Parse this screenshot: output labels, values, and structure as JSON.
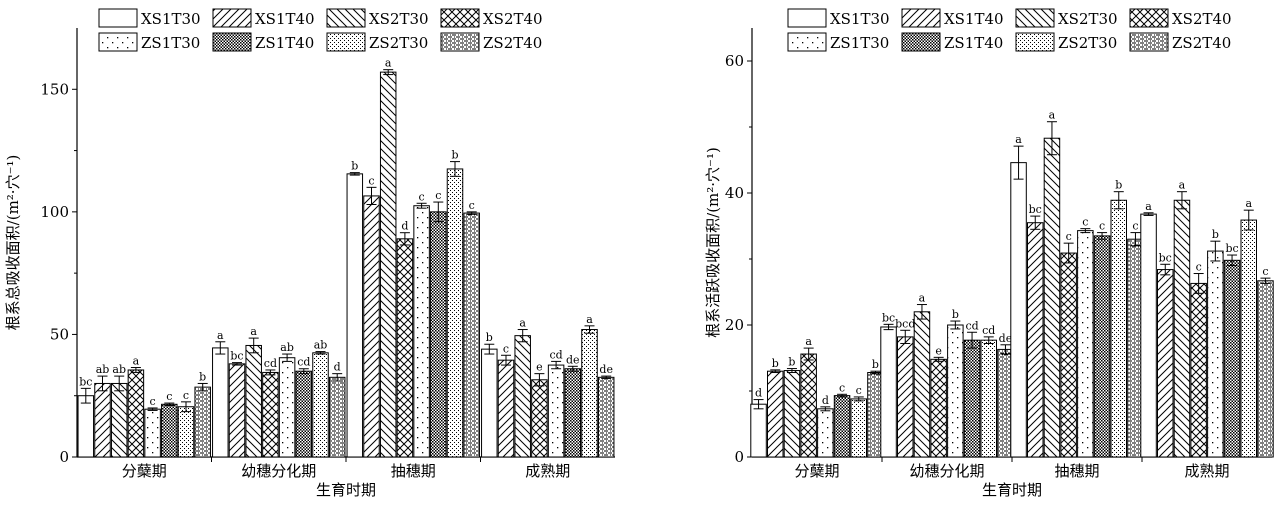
{
  "series_names": [
    "XS1T30",
    "XS1T40",
    "XS2T30",
    "XS2T40",
    "ZS1T30",
    "ZS1T40",
    "ZS2T30",
    "ZS2T40"
  ],
  "patterns": [
    "blank",
    "fwd-diag",
    "back-diag",
    "crosshatch",
    "sparse-dots",
    "dense-check",
    "fine-dots",
    "wave-dash"
  ],
  "chart_data": [
    {
      "type": "bar",
      "title": "",
      "xlabel": "生育时期",
      "ylabel": "根系总吸收面积/(m²·穴⁻¹)",
      "categories": [
        "分蘖期",
        "幼穗分化期",
        "抽穗期",
        "成熟期"
      ],
      "ylim": [
        0,
        175
      ],
      "yticks": [
        0,
        50,
        100,
        150
      ],
      "legend": "top",
      "series": [
        {
          "name": "XS1T30",
          "values": [
            25,
            44.5,
            115.5,
            44
          ],
          "errors": [
            3,
            2.5,
            0.5,
            2
          ],
          "labels": [
            "bc",
            "a",
            "b",
            "b"
          ]
        },
        {
          "name": "XS1T40",
          "values": [
            30,
            38,
            106.5,
            39.5
          ],
          "errors": [
            3,
            0.5,
            3.5,
            2
          ],
          "labels": [
            "ab",
            "bc",
            "c",
            "c"
          ]
        },
        {
          "name": "XS2T30",
          "values": [
            30,
            45.5,
            157,
            49.5
          ],
          "errors": [
            3,
            3,
            1,
            2.5
          ],
          "labels": [
            "ab",
            "a",
            "a",
            "a"
          ]
        },
        {
          "name": "XS2T40",
          "values": [
            35.5,
            34.5,
            89,
            31.5
          ],
          "errors": [
            1,
            1,
            2.5,
            2.5
          ],
          "labels": [
            "a",
            "cd",
            "d",
            "e"
          ]
        },
        {
          "name": "ZS1T30",
          "values": [
            19.5,
            40.5,
            102.5,
            37.5
          ],
          "errors": [
            0.5,
            1.5,
            1,
            1.5
          ],
          "labels": [
            "c",
            "ab",
            "c",
            "cd"
          ]
        },
        {
          "name": "ZS1T40",
          "values": [
            21.5,
            35,
            100,
            36
          ],
          "errors": [
            0.5,
            1,
            4,
            1
          ],
          "labels": [
            "c",
            "cd",
            "c",
            "de"
          ]
        },
        {
          "name": "ZS2T30",
          "values": [
            20.5,
            42.5,
            117.5,
            52
          ],
          "errors": [
            2,
            0.5,
            3,
            1.5
          ],
          "labels": [
            "c",
            "ab",
            "b",
            "a"
          ]
        },
        {
          "name": "ZS2T40",
          "values": [
            28.5,
            32.5,
            99.5,
            32.5
          ],
          "errors": [
            1.5,
            1.5,
            0.5,
            0.5
          ],
          "labels": [
            "b",
            "d",
            "c",
            "de"
          ]
        }
      ]
    },
    {
      "type": "bar",
      "title": "",
      "xlabel": "生育时期",
      "ylabel": "根系活跃吸收面积/(m²·穴⁻¹)",
      "categories": [
        "分蘖期",
        "幼穗分化期",
        "抽穗期",
        "成熟期"
      ],
      "ylim": [
        0,
        65
      ],
      "yticks": [
        0,
        20,
        40,
        60
      ],
      "legend": "top",
      "series": [
        {
          "name": "XS1T30",
          "values": [
            8,
            19.7,
            44.6,
            36.8
          ],
          "errors": [
            0.7,
            0.4,
            2.5,
            0.2
          ],
          "labels": [
            "d",
            "bc",
            "a",
            "a"
          ]
        },
        {
          "name": "XS1T40",
          "values": [
            13,
            18.2,
            35.5,
            28.4
          ],
          "errors": [
            0.2,
            1.0,
            1.0,
            0.8
          ],
          "labels": [
            "b",
            "bcd",
            "bc",
            "bc"
          ]
        },
        {
          "name": "XS2T30",
          "values": [
            13.1,
            22,
            48.3,
            38.9
          ],
          "errors": [
            0.3,
            1.1,
            2.5,
            1.3
          ],
          "labels": [
            "b",
            "a",
            "a",
            "a"
          ]
        },
        {
          "name": "XS2T40",
          "values": [
            15.6,
            14.8,
            30.9,
            26.3
          ],
          "errors": [
            0.9,
            0.3,
            1.5,
            1.5
          ],
          "labels": [
            "a",
            "e",
            "c",
            "c"
          ]
        },
        {
          "name": "ZS1T30",
          "values": [
            7.3,
            20,
            34.3,
            31.2
          ],
          "errors": [
            0.3,
            0.6,
            0.3,
            1.5
          ],
          "labels": [
            "d",
            "b",
            "c",
            "b"
          ]
        },
        {
          "name": "ZS1T40",
          "values": [
            9.3,
            17.7,
            33.5,
            29.8
          ],
          "errors": [
            0.2,
            1.2,
            0.5,
            0.8
          ],
          "labels": [
            "c",
            "cd",
            "c",
            "bc"
          ]
        },
        {
          "name": "ZS2T30",
          "values": [
            8.8,
            17.7,
            38.9,
            35.9
          ],
          "errors": [
            0.3,
            0.5,
            1.3,
            1.5
          ],
          "labels": [
            "c",
            "cd",
            "b",
            "a"
          ]
        },
        {
          "name": "ZS2T40",
          "values": [
            12.8,
            16.3,
            33,
            26.7
          ],
          "errors": [
            0.2,
            0.7,
            1,
            0.4
          ],
          "labels": [
            "b",
            "de",
            "c",
            "c"
          ]
        }
      ]
    }
  ]
}
